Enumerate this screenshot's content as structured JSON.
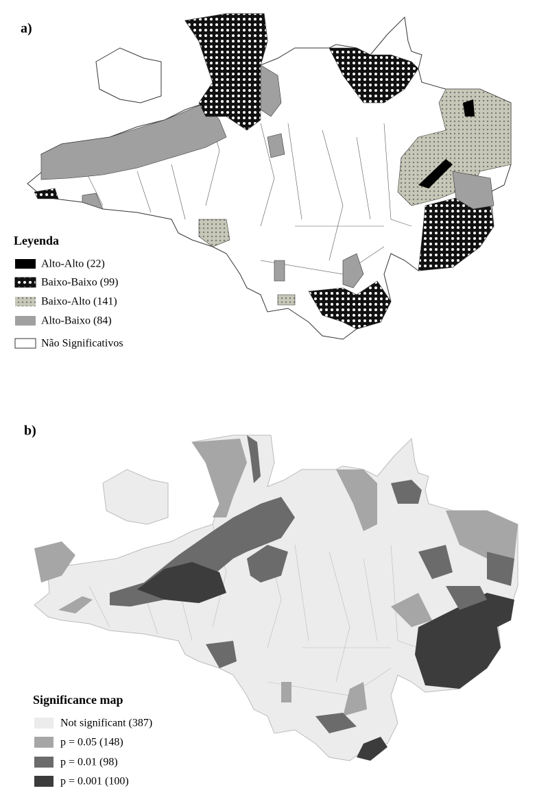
{
  "panels": [
    {
      "label": "a)",
      "legend": {
        "title": "Leyenda",
        "items": [
          "Alto-Alto (22)",
          "Baixo-Baixo (99)",
          "Baixo-Alto (141)",
          "Alto-Baixo (84)",
          "Não Significativos"
        ]
      }
    },
    {
      "label": "b)",
      "legend": {
        "title": "Significance map",
        "items": [
          "Not significant (387)",
          "p = 0.05 (148)",
          "p = 0.01 (98)",
          "p = 0.001 (100)"
        ]
      }
    }
  ]
}
